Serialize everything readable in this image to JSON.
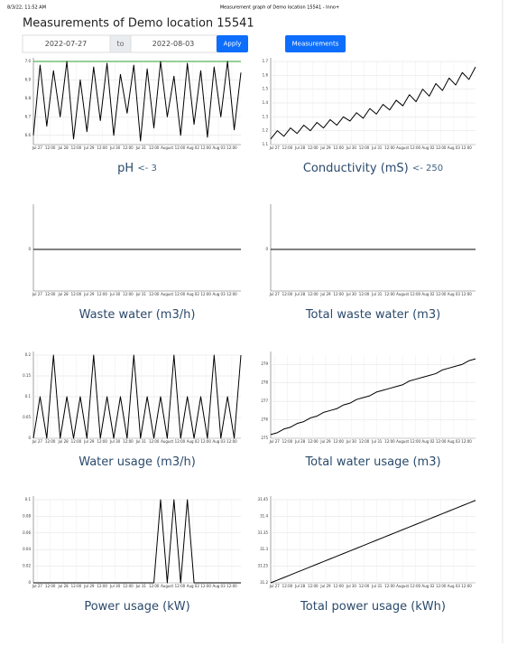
{
  "header": {
    "timestamp": "8/3/22, 11:52 AM",
    "page_title": "Measurement graph of Demo location 15541 - Inno+",
    "title": "Measurements of Demo location 15541"
  },
  "controls": {
    "from": "2022-07-27",
    "to_label": "to",
    "to": "2022-08-03",
    "apply": "Apply",
    "measurements": "Measurements"
  },
  "x_tick_labels": [
    "Jul 27",
    "12:00",
    "Jul 28",
    "12:00",
    "Jul 29",
    "12:00",
    "Jul 30",
    "12:00",
    "Jul 31",
    "12:00",
    "August",
    "12:00",
    "Aug 02",
    "12:00",
    "Aug 03",
    "12:00"
  ],
  "chart_data": [
    {
      "type": "line",
      "title": "pH",
      "limit": "<- 3",
      "color": "#000000",
      "grid": true,
      "reference_line": {
        "value": 7.0,
        "color": "#2ca02c"
      },
      "ylim": [
        6.55,
        7.0
      ],
      "yticks": [
        6.6,
        6.7,
        6.8,
        6.9,
        {
          "value": 7.0,
          "label": "7.0"
        }
      ],
      "values": [
        6.6,
        6.98,
        6.65,
        6.95,
        6.7,
        7.0,
        6.58,
        6.9,
        6.62,
        6.97,
        6.68,
        6.99,
        6.6,
        6.93,
        6.72,
        6.98,
        6.57,
        6.96,
        6.64,
        7.0,
        6.7,
        6.92,
        6.6,
        6.99,
        6.66,
        6.95,
        6.59,
        6.97,
        6.7,
        7.0,
        6.63,
        6.94
      ]
    },
    {
      "type": "line",
      "title": "Conductivity (mS)",
      "limit": "<- 250",
      "color": "#000000",
      "grid": true,
      "ylim": [
        1.1,
        1.7
      ],
      "yticks": [
        1.1,
        1.2,
        1.3,
        1.4,
        1.5,
        1.6,
        1.7
      ],
      "values": [
        1.14,
        1.2,
        1.16,
        1.22,
        1.18,
        1.24,
        1.2,
        1.26,
        1.22,
        1.28,
        1.24,
        1.3,
        1.27,
        1.33,
        1.29,
        1.36,
        1.32,
        1.39,
        1.35,
        1.42,
        1.38,
        1.46,
        1.41,
        1.5,
        1.45,
        1.54,
        1.49,
        1.58,
        1.53,
        1.62,
        1.57,
        1.66
      ]
    },
    {
      "type": "line",
      "title": "Waste water (m3/h)",
      "color": "#000000",
      "grid": false,
      "ylim": [
        -1,
        1
      ],
      "yticks": [
        0
      ],
      "values": [
        0,
        0,
        0,
        0,
        0,
        0,
        0,
        0,
        0,
        0,
        0,
        0,
        0,
        0,
        0,
        0,
        0,
        0,
        0,
        0,
        0,
        0,
        0,
        0,
        0,
        0,
        0,
        0,
        0,
        0,
        0,
        0
      ]
    },
    {
      "type": "line",
      "title": "Total waste water (m3)",
      "color": "#000000",
      "grid": false,
      "ylim": [
        -1,
        1
      ],
      "yticks": [
        0
      ],
      "values": [
        0,
        0,
        0,
        0,
        0,
        0,
        0,
        0,
        0,
        0,
        0,
        0,
        0,
        0,
        0,
        0,
        0,
        0,
        0,
        0,
        0,
        0,
        0,
        0,
        0,
        0,
        0,
        0,
        0,
        0,
        0,
        0
      ]
    },
    {
      "type": "line",
      "title": "Water usage (m3/h)",
      "color": "#000000",
      "grid": true,
      "ylim": [
        0,
        0.2
      ],
      "yticks": [
        0,
        0.05,
        0.1,
        0.15,
        0.2
      ],
      "values": [
        0,
        0.1,
        0,
        0.2,
        0,
        0.1,
        0,
        0.1,
        0,
        0.2,
        0,
        0.1,
        0,
        0.1,
        0,
        0.2,
        0,
        0.1,
        0,
        0.1,
        0,
        0.2,
        0,
        0.1,
        0,
        0.1,
        0,
        0.2,
        0,
        0.1,
        0,
        0.2
      ]
    },
    {
      "type": "line",
      "title": "Total water usage (m3)",
      "color": "#000000",
      "grid": true,
      "ylim": [
        275,
        279.5
      ],
      "yticks": [
        275,
        276,
        277,
        278,
        279
      ],
      "values": [
        275.2,
        275.3,
        275.5,
        275.6,
        275.8,
        275.9,
        276.1,
        276.2,
        276.4,
        276.5,
        276.6,
        276.8,
        276.9,
        277.1,
        277.2,
        277.3,
        277.5,
        277.6,
        277.7,
        277.8,
        277.9,
        278.1,
        278.2,
        278.3,
        278.4,
        278.5,
        278.7,
        278.8,
        278.9,
        279,
        279.2,
        279.3
      ]
    },
    {
      "type": "line",
      "title": "Power usage (kW)",
      "color": "#000000",
      "grid": true,
      "ylim": [
        0,
        0.1
      ],
      "yticks": [
        0,
        0.02,
        0.04,
        0.06,
        0.08,
        0.1
      ],
      "values": [
        0,
        0,
        0,
        0,
        0,
        0,
        0,
        0,
        0,
        0,
        0,
        0,
        0,
        0,
        0,
        0,
        0,
        0,
        0,
        0.1,
        0,
        0.1,
        0,
        0.1,
        0,
        0,
        0,
        0,
        0,
        0,
        0,
        0
      ]
    },
    {
      "type": "line",
      "title": "Total power usage (kWh)",
      "color": "#000000",
      "grid": true,
      "ylim": [
        31.2,
        31.45
      ],
      "yticks": [
        31.2,
        31.25,
        31.3,
        31.35,
        31.4,
        31.45
      ],
      "values": [
        31.2,
        31.208,
        31.216,
        31.224,
        31.232,
        31.24,
        31.248,
        31.256,
        31.264,
        31.272,
        31.28,
        31.288,
        31.296,
        31.304,
        31.312,
        31.32,
        31.328,
        31.336,
        31.344,
        31.352,
        31.36,
        31.368,
        31.376,
        31.384,
        31.392,
        31.4,
        31.408,
        31.416,
        31.424,
        31.432,
        31.44,
        31.448
      ]
    }
  ]
}
